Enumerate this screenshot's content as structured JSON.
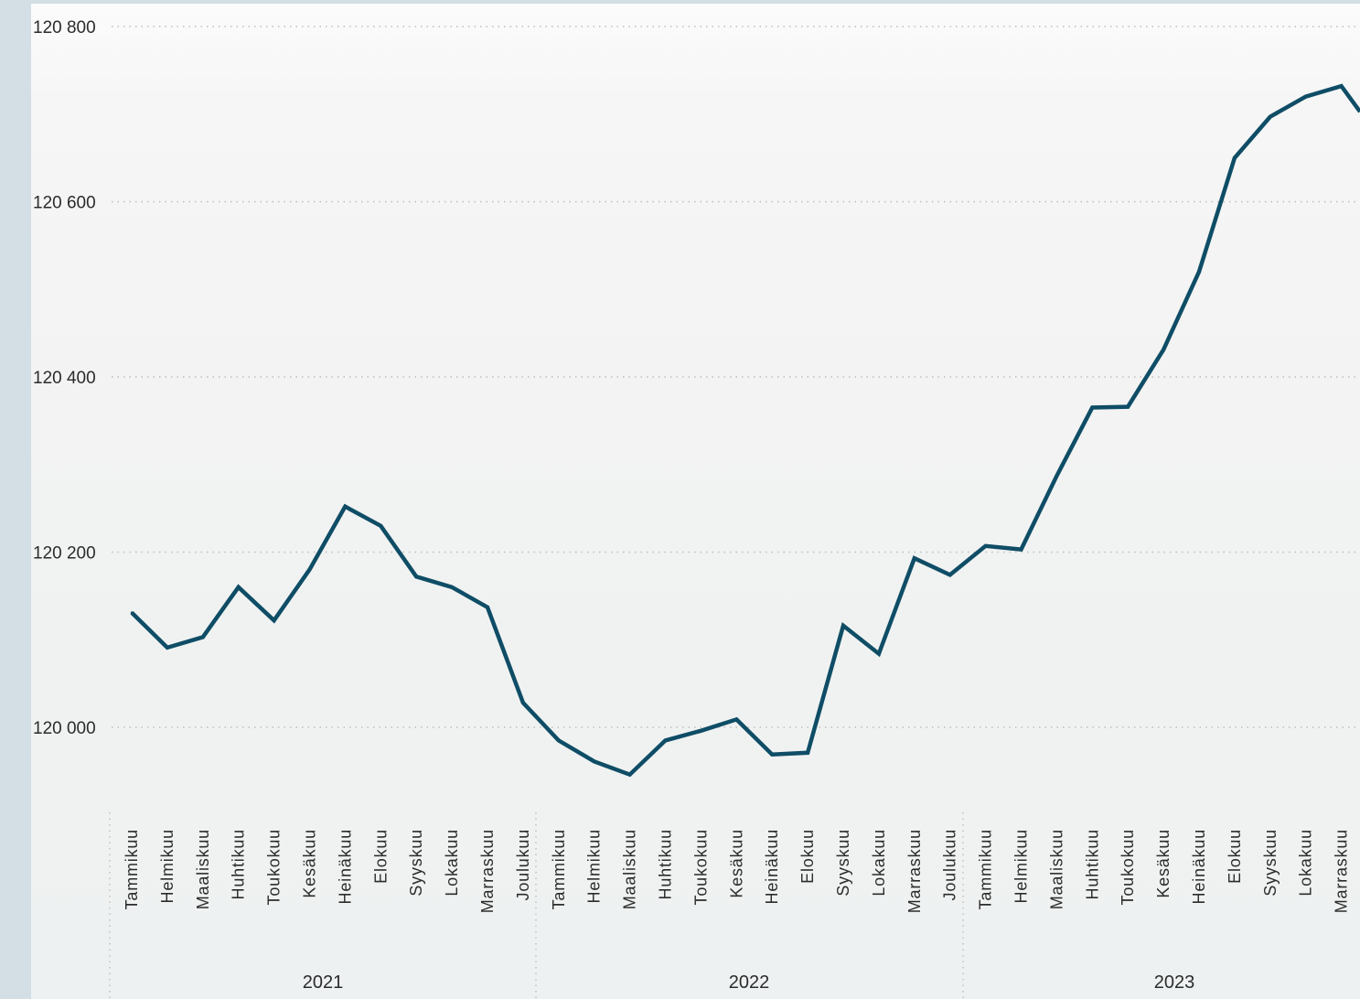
{
  "colors": {
    "line": "#0f4d66",
    "grid": "#bdbdbd",
    "frame": "#d3dee5",
    "text": "#2b2b2b"
  },
  "chart_data": {
    "type": "line",
    "title": "",
    "xlabel": "",
    "ylabel": "",
    "grid": true,
    "legend": "none",
    "ylim": [
      119900,
      120810
    ],
    "yticks": [
      120000,
      120200,
      120400,
      120600,
      120800
    ],
    "ytick_labels": [
      "120 000",
      "120 200",
      "120 400",
      "120 600",
      "120 800"
    ],
    "years": [
      "2021",
      "2022",
      "2023"
    ],
    "categories": [
      "Tammikuu",
      "Helmikuu",
      "Maaliskuu",
      "Huhtikuu",
      "Toukokuu",
      "Kesäkuu",
      "Heinäkuu",
      "Elokuu",
      "Syyskuu",
      "Lokakuu",
      "Marraskuu",
      "Joulukuu",
      "Tammikuu",
      "Helmikuu",
      "Maaliskuu",
      "Huhtikuu",
      "Toukokuu",
      "Kesäkuu",
      "Heinäkuu",
      "Elokuu",
      "Syyskuu",
      "Lokakuu",
      "Marraskuu",
      "Joulukuu",
      "Tammikuu",
      "Helmikuu",
      "Maaliskuu",
      "Huhtikuu",
      "Toukokuu",
      "Kesäkuu",
      "Heinäkuu",
      "Elokuu",
      "Syyskuu",
      "Lokakuu",
      "Marraskuu"
    ],
    "series": [
      {
        "values": [
          120131,
          120091,
          120103,
          120160,
          120122,
          120180,
          120252,
          120230,
          120172,
          120160,
          120137,
          120028,
          119985,
          119961,
          119946,
          119985,
          119996,
          120009,
          119969,
          119971,
          120116,
          120084,
          120193,
          120174,
          120207,
          120203,
          120287,
          120365,
          120366,
          120431,
          120520,
          120650,
          120697,
          120720,
          120732
        ]
      }
    ]
  }
}
